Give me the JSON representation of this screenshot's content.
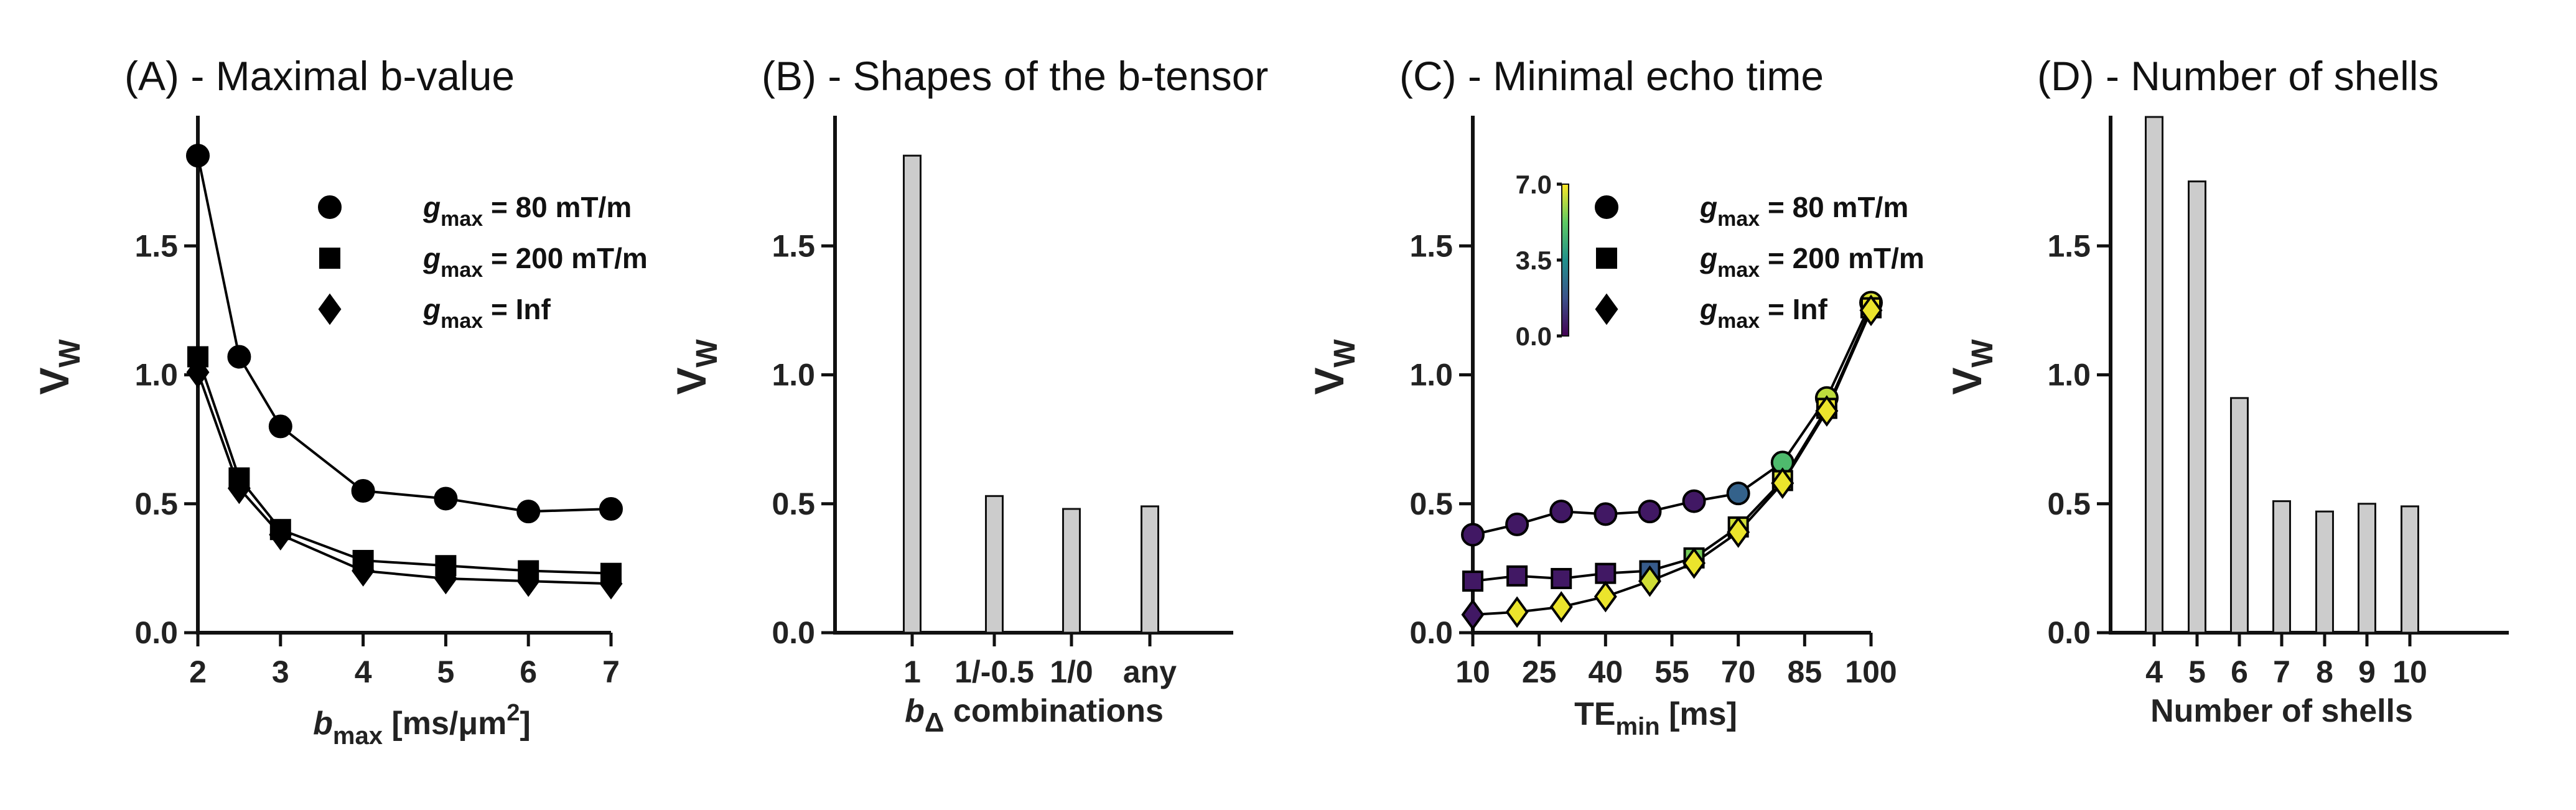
{
  "chart_data": [
    {
      "type": "line",
      "title": "(A) - Maximal b-value",
      "xlabel": {
        "main": "b",
        "sub": "max",
        "rest": " [ms/μm",
        "sup": "2",
        "end": "]"
      },
      "ylabel": {
        "main": "V",
        "sub": "W"
      },
      "xlim": [
        2,
        7
      ],
      "ylim": [
        0,
        2
      ],
      "xticks": [
        "2",
        "3",
        "4",
        "5",
        "6",
        "7"
      ],
      "yticks": [
        "0.0",
        "0.5",
        "1.0",
        "1.5"
      ],
      "x": [
        2,
        2.5,
        3,
        4,
        5,
        6,
        7
      ],
      "legend": "top-right",
      "series": [
        {
          "name": {
            "main": "g",
            "sub": "max",
            "rest": " = 80 mT/m"
          },
          "marker": "circle",
          "values": [
            1.85,
            1.07,
            0.8,
            0.55,
            0.52,
            0.47,
            0.48
          ]
        },
        {
          "name": {
            "main": "g",
            "sub": "max",
            "rest": " = 200 mT/m"
          },
          "marker": "square",
          "values": [
            1.07,
            0.6,
            0.4,
            0.28,
            0.26,
            0.24,
            0.23
          ]
        },
        {
          "name": {
            "main": "g",
            "sub": "max",
            "rest": " = Inf"
          },
          "marker": "diamond",
          "values": [
            1.01,
            0.56,
            0.38,
            0.24,
            0.21,
            0.2,
            0.19
          ]
        }
      ]
    },
    {
      "type": "bar",
      "title": "(B) - Shapes of the b-tensor",
      "xlabel": {
        "main": "b",
        "sub": "Δ",
        "rest": " combinations"
      },
      "ylabel": {
        "main": "V",
        "sub": "W"
      },
      "ylim": [
        0,
        2
      ],
      "yticks": [
        "0.0",
        "0.5",
        "1.0",
        "1.5"
      ],
      "categories": [
        "1",
        "1/-0.5",
        "1/0",
        "any"
      ],
      "values": [
        1.85,
        0.53,
        0.48,
        0.49
      ],
      "bar_color": "#cccccc"
    },
    {
      "type": "line",
      "title": "(C) - Minimal echo time",
      "xlabel": {
        "main": "TE",
        "sub": "min",
        "rest": " [ms]"
      },
      "ylabel": {
        "main": "V",
        "sub": "W"
      },
      "xlim": [
        10,
        100
      ],
      "ylim": [
        0,
        2
      ],
      "xticks": [
        "10",
        "25",
        "40",
        "55",
        "70",
        "85",
        "100"
      ],
      "yticks": [
        "0.0",
        "0.5",
        "1.0",
        "1.5"
      ],
      "x": [
        10,
        20,
        30,
        40,
        50,
        60,
        70,
        80,
        90,
        100
      ],
      "legend": "top-right",
      "colorbar": {
        "ticks": [
          "0.0",
          "3.5",
          "7.0"
        ],
        "range": [
          0,
          7
        ],
        "colormap": [
          "#440154",
          "#3b528b",
          "#21918c",
          "#5ec962",
          "#fde725"
        ]
      },
      "series": [
        {
          "name": {
            "main": "g",
            "sub": "max",
            "rest": " = 80 mT/m"
          },
          "marker": "circle",
          "x": [
            10,
            20,
            30,
            40,
            50,
            60,
            70,
            80,
            90,
            100
          ],
          "values": [
            0.38,
            0.42,
            0.47,
            0.46,
            0.47,
            0.51,
            0.54,
            0.66,
            0.91,
            1.28
          ],
          "color_values": [
            0.5,
            0.5,
            0.5,
            0.5,
            0.5,
            0.5,
            2.2,
            4.8,
            6.3,
            6.6
          ]
        },
        {
          "name": {
            "main": "g",
            "sub": "max",
            "rest": " = 200 mT/m"
          },
          "marker": "square",
          "x": [
            10,
            20,
            30,
            40,
            50,
            60,
            70,
            80,
            90,
            100
          ],
          "values": [
            0.2,
            0.22,
            0.21,
            0.23,
            0.24,
            0.29,
            0.41,
            0.59,
            0.87,
            1.26
          ],
          "color_values": [
            0.5,
            0.5,
            0.5,
            0.5,
            2.0,
            5.5,
            6.5,
            6.6,
            6.8,
            6.8
          ]
        },
        {
          "name": {
            "main": "g",
            "sub": "max",
            "rest": " = Inf"
          },
          "marker": "diamond",
          "x": [
            10,
            20,
            30,
            40,
            50,
            60,
            70,
            80,
            90,
            100
          ],
          "values": [
            0.07,
            0.08,
            0.1,
            0.14,
            0.2,
            0.27,
            0.39,
            0.58,
            0.86,
            1.25
          ],
          "color_values": [
            0.5,
            6.8,
            6.8,
            6.8,
            6.5,
            6.8,
            6.8,
            6.8,
            6.8,
            6.8
          ]
        }
      ]
    },
    {
      "type": "bar",
      "title": "(D) - Number of shells",
      "xlabel": {
        "main": "Number of shells"
      },
      "ylabel": {
        "main": "V",
        "sub": "W"
      },
      "ylim": [
        0,
        2
      ],
      "yticks": [
        "0.0",
        "0.5",
        "1.0",
        "1.5"
      ],
      "categories": [
        "4",
        "5",
        "6",
        "7",
        "8",
        "9",
        "10"
      ],
      "values": [
        2.0,
        1.75,
        0.91,
        0.51,
        0.47,
        0.5,
        0.49
      ],
      "bar_color": "#cccccc"
    }
  ]
}
